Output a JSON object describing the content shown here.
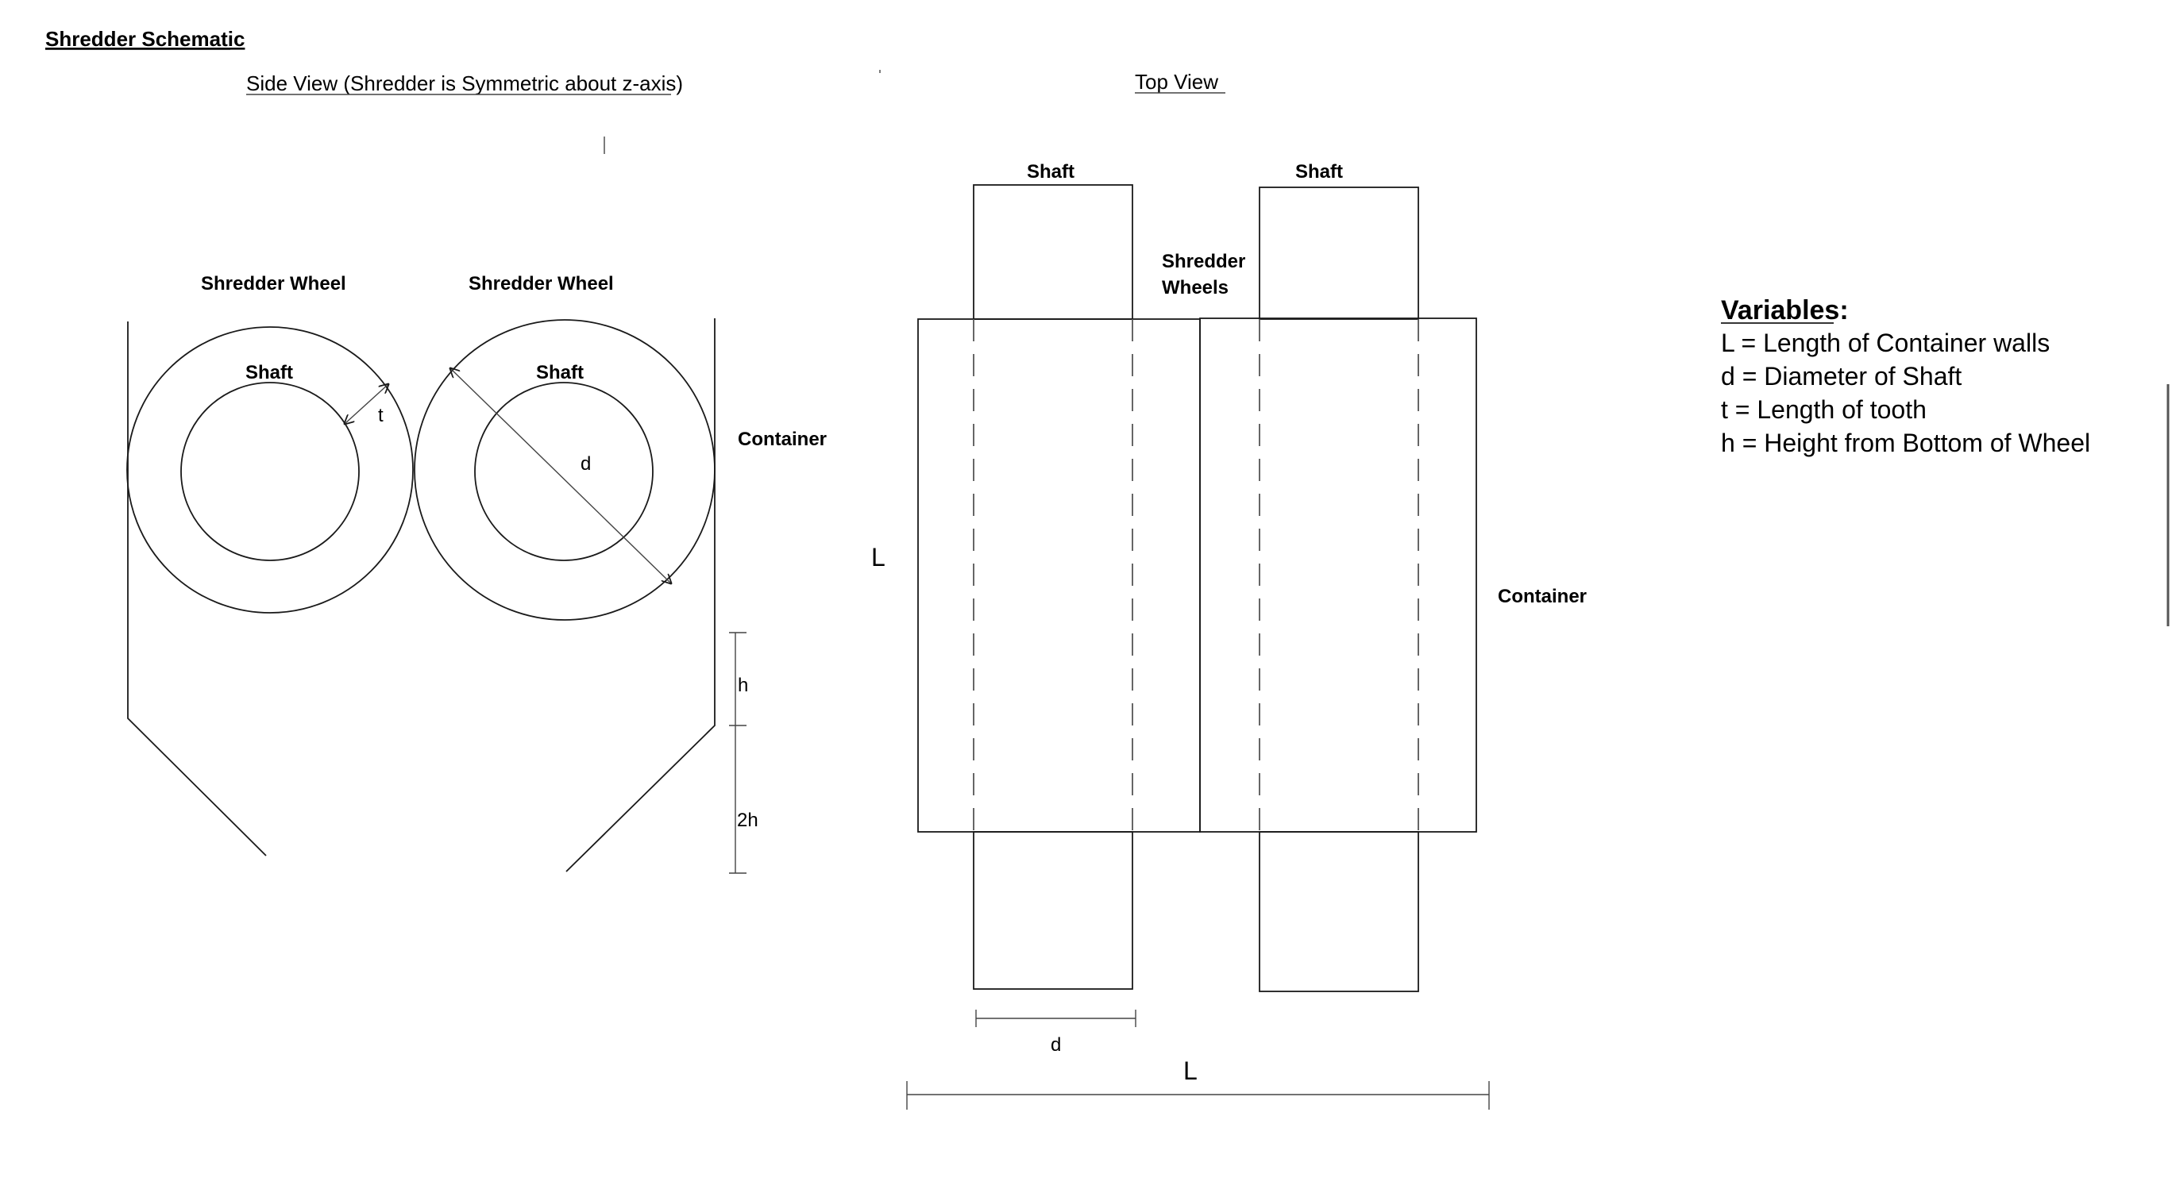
{
  "title": "Shredder Schematic",
  "side_view": {
    "heading": "Side View (Shredder is Symmetric about z-axis)",
    "wheel_left_label": "Shredder Wheel",
    "wheel_right_label": "Shredder Wheel",
    "shaft_left_label": "Shaft",
    "shaft_right_label": "Shaft",
    "container_label": "Container",
    "dim_t": "t",
    "dim_d": "d",
    "dim_h": "h",
    "dim_2h": "2h"
  },
  "top_view": {
    "heading": "Top View",
    "shaft_left_label": "Shaft",
    "shaft_right_label": "Shaft",
    "wheels_label_line1": "Shredder",
    "wheels_label_line2": "Wheels",
    "container_label": "Container",
    "dim_L_side": "L",
    "dim_L_bottom": "L",
    "dim_d": "d"
  },
  "variables": {
    "heading": "Variables:",
    "items": [
      "L = Length of Container walls",
      "d = Diameter of Shaft",
      "t = Length of tooth",
      "h = Height from Bottom of Wheel"
    ]
  }
}
